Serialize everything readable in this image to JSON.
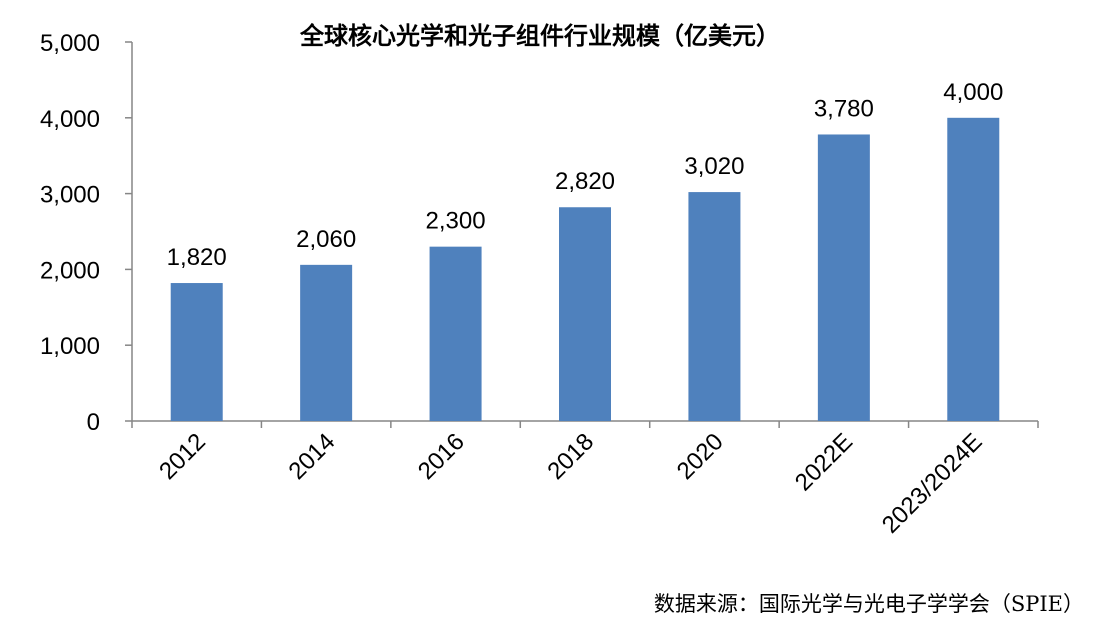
{
  "source_note": "数据来源：国际光学与光电子学学会（SPIE）",
  "chart_data": {
    "type": "bar",
    "title": "全球核心光学和光子组件行业规模（亿美元）",
    "categories": [
      "2012",
      "2014",
      "2016",
      "2018",
      "2020",
      "2022E",
      "2023/2024E"
    ],
    "values": [
      1820,
      2060,
      2300,
      2820,
      3020,
      3780,
      4000
    ],
    "data_labels": [
      "1,820",
      "2,060",
      "2,300",
      "2,820",
      "3,020",
      "3,780",
      "4,000"
    ],
    "yticks": [
      0,
      1000,
      2000,
      3000,
      4000,
      5000
    ],
    "ytick_labels": [
      "0",
      "1,000",
      "2,000",
      "3,000",
      "4,000",
      "5,000"
    ],
    "ylim": [
      0,
      5000
    ],
    "xlabel": "",
    "ylabel": "",
    "grid": false,
    "bar_color": "#4F81BD"
  }
}
